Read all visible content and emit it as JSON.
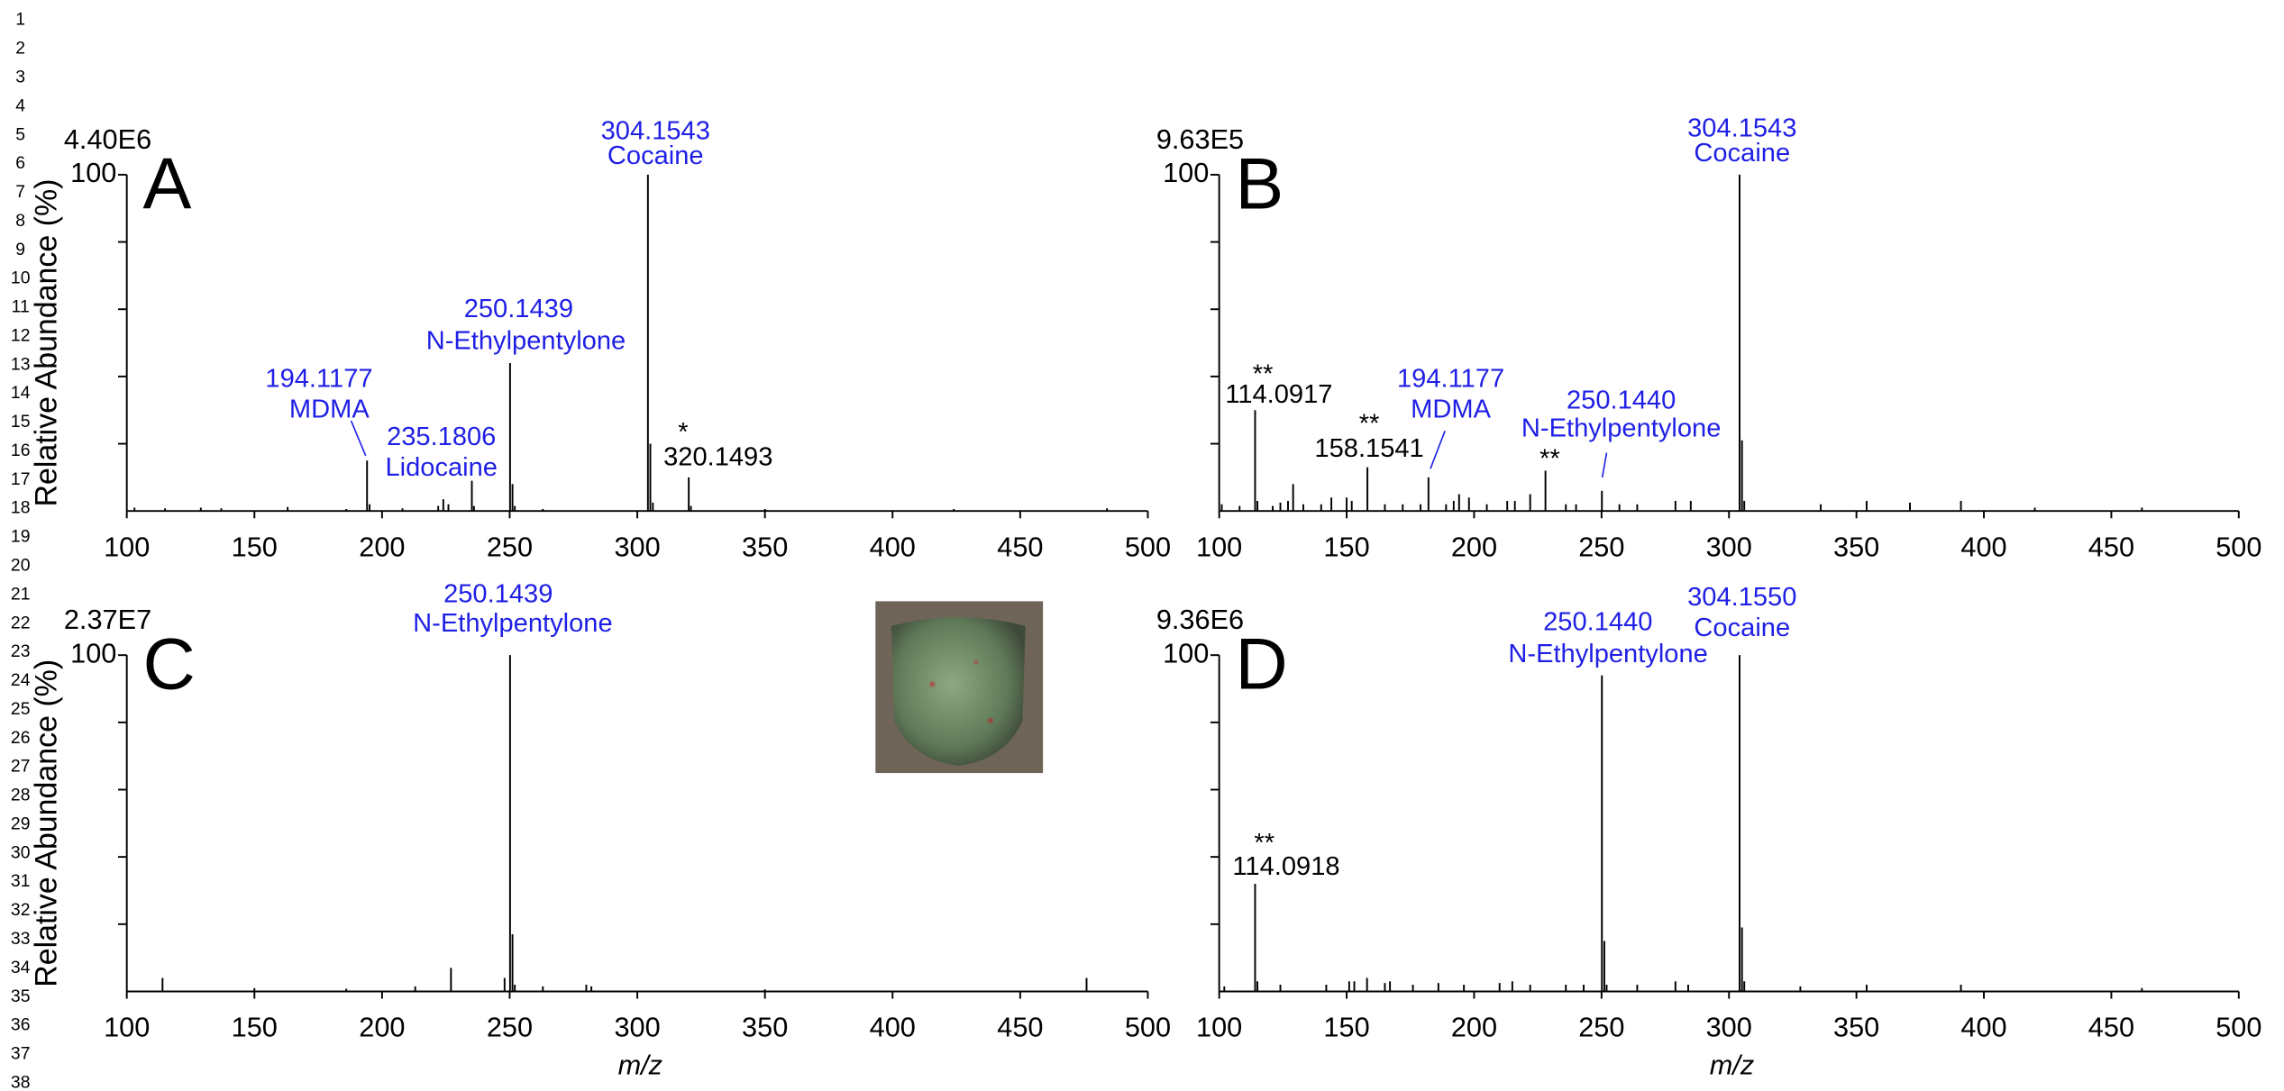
{
  "line_numbers": [
    1,
    2,
    3,
    4,
    5,
    6,
    7,
    8,
    9,
    10,
    11,
    12,
    13,
    14,
    15,
    16,
    17,
    18,
    19,
    20,
    21,
    22,
    23,
    24,
    25,
    26,
    27,
    28,
    29,
    30,
    31,
    32,
    33,
    34,
    35,
    36,
    37,
    38
  ],
  "chart_data": [
    {
      "type": "bar",
      "panel": "A",
      "intensity": "4.40E6",
      "ylabel": "Relative Abundance (%)",
      "xlim": [
        100,
        500
      ],
      "xticks": [
        100,
        150,
        200,
        250,
        300,
        350,
        400,
        450,
        500
      ],
      "ylim": [
        0,
        100
      ],
      "yticks": [
        100
      ],
      "minor_yticks": [
        20,
        40,
        60,
        80
      ],
      "x": [
        103,
        115,
        129,
        137,
        163,
        186,
        194.1177,
        195.1,
        208,
        222,
        224,
        226,
        235.1806,
        236,
        250.1439,
        251.1,
        252,
        263,
        304.1543,
        305.1,
        306.1,
        320.1493,
        321,
        350,
        424,
        484
      ],
      "values": [
        1,
        0.8,
        1,
        0.8,
        1.2,
        0.6,
        15,
        2,
        0.8,
        1.5,
        3.5,
        2,
        9,
        1.5,
        44,
        8,
        1.5,
        0.6,
        100,
        20,
        2.5,
        10,
        1.5,
        0.6,
        0.6,
        0.8
      ],
      "annotations": [
        {
          "lines": [
            "304.1543",
            "Cocaine"
          ],
          "color": "#1f1fe6"
        },
        {
          "lines": [
            "250.1439",
            "N-Ethylpentylone"
          ],
          "color": "#1f1fe6"
        },
        {
          "lines": [
            "194.1177",
            "MDMA"
          ],
          "color": "#1f1fe6"
        },
        {
          "lines": [
            "235.1806",
            "Lidocaine"
          ],
          "color": "#1f1fe6"
        },
        {
          "lines": [
            "*",
            "320.1493"
          ],
          "color": "#000000"
        }
      ]
    },
    {
      "type": "bar",
      "panel": "B",
      "intensity": "9.63E5",
      "xlim": [
        100,
        500
      ],
      "xticks": [
        100,
        150,
        200,
        250,
        300,
        350,
        400,
        450,
        500
      ],
      "ylim": [
        0,
        100
      ],
      "yticks": [
        100
      ],
      "minor_yticks": [
        20,
        40,
        60,
        80
      ],
      "x": [
        101,
        108,
        114.0917,
        115,
        121,
        124,
        127,
        129,
        133,
        140,
        144,
        150,
        152,
        158.1541,
        165,
        172,
        179,
        182.1,
        189,
        192,
        194.1177,
        198,
        205,
        213,
        216,
        222,
        228,
        236,
        240,
        250.144,
        257,
        264,
        279,
        285,
        304.1543,
        305.1,
        306,
        336,
        354,
        371,
        391,
        420,
        462
      ],
      "values": [
        2,
        1.5,
        30,
        3,
        1.5,
        2.5,
        3,
        8,
        2,
        2,
        4,
        4,
        3,
        13,
        2,
        2,
        2,
        10,
        2,
        3,
        5,
        4,
        2,
        3,
        3,
        5,
        12,
        2,
        2,
        6,
        2,
        2,
        3,
        3,
        100,
        21,
        3,
        2,
        3,
        2.5,
        3,
        1,
        1
      ],
      "annotations": [
        {
          "lines": [
            "304.1543",
            "Cocaine"
          ],
          "color": "#1f1fe6"
        },
        {
          "lines": [
            "**",
            "114.0917"
          ],
          "color": "#000000"
        },
        {
          "lines": [
            "**",
            "158.1541"
          ],
          "color": "#000000"
        },
        {
          "lines": [
            "194.1177",
            "MDMA"
          ],
          "color": "#1f1fe6"
        },
        {
          "lines": [
            "**"
          ],
          "color": "#000000"
        },
        {
          "lines": [
            "250.1440",
            "N-Ethylpentylone"
          ],
          "color": "#1f1fe6"
        }
      ]
    },
    {
      "type": "bar",
      "panel": "C",
      "intensity": "2.37E7",
      "ylabel": "Relative Abundance (%)",
      "xlabel": "m/z",
      "xlim": [
        100,
        500
      ],
      "xticks": [
        100,
        150,
        200,
        250,
        300,
        350,
        400,
        450,
        500
      ],
      "ylim": [
        0,
        100
      ],
      "yticks": [
        100
      ],
      "minor_yticks": [
        20,
        40,
        60,
        80
      ],
      "x": [
        114,
        150,
        186,
        213,
        227,
        248,
        250.1439,
        251.1,
        252,
        263,
        280,
        282,
        350,
        476
      ],
      "values": [
        4,
        1,
        0.8,
        1.5,
        7,
        4,
        100,
        17,
        2,
        1.5,
        2,
        1.5,
        0.6,
        4
      ],
      "annotations": [
        {
          "lines": [
            "250.1439",
            "N-Ethylpentylone"
          ],
          "color": "#1f1fe6"
        }
      ]
    },
    {
      "type": "bar",
      "panel": "D",
      "intensity": "9.36E6",
      "xlabel": "m/z",
      "xlim": [
        100,
        500
      ],
      "xticks": [
        100,
        150,
        200,
        250,
        300,
        350,
        400,
        450,
        500
      ],
      "ylim": [
        0,
        100
      ],
      "yticks": [
        100
      ],
      "minor_yticks": [
        20,
        40,
        60,
        80
      ],
      "x": [
        102,
        114.0918,
        115,
        124,
        142,
        151,
        153,
        158,
        165,
        167,
        176,
        186,
        196,
        210,
        215,
        222,
        236,
        243,
        250.144,
        251.1,
        252,
        264,
        279,
        284,
        304.155,
        305.1,
        306,
        328,
        354,
        391,
        462
      ],
      "values": [
        1.5,
        32,
        3,
        2,
        2,
        3,
        3,
        4,
        2.5,
        3,
        2,
        2.5,
        2,
        2.5,
        3,
        2,
        2,
        2,
        94,
        15,
        2,
        2,
        3,
        2,
        100,
        19,
        3,
        1.5,
        2,
        2,
        1
      ],
      "annotations": [
        {
          "lines": [
            "250.1440",
            "N-Ethylpentylone"
          ],
          "color": "#1f1fe6"
        },
        {
          "lines": [
            "304.1550",
            "Cocaine"
          ],
          "color": "#1f1fe6"
        },
        {
          "lines": [
            "**",
            "114.0918"
          ],
          "color": "#000000"
        }
      ]
    }
  ]
}
